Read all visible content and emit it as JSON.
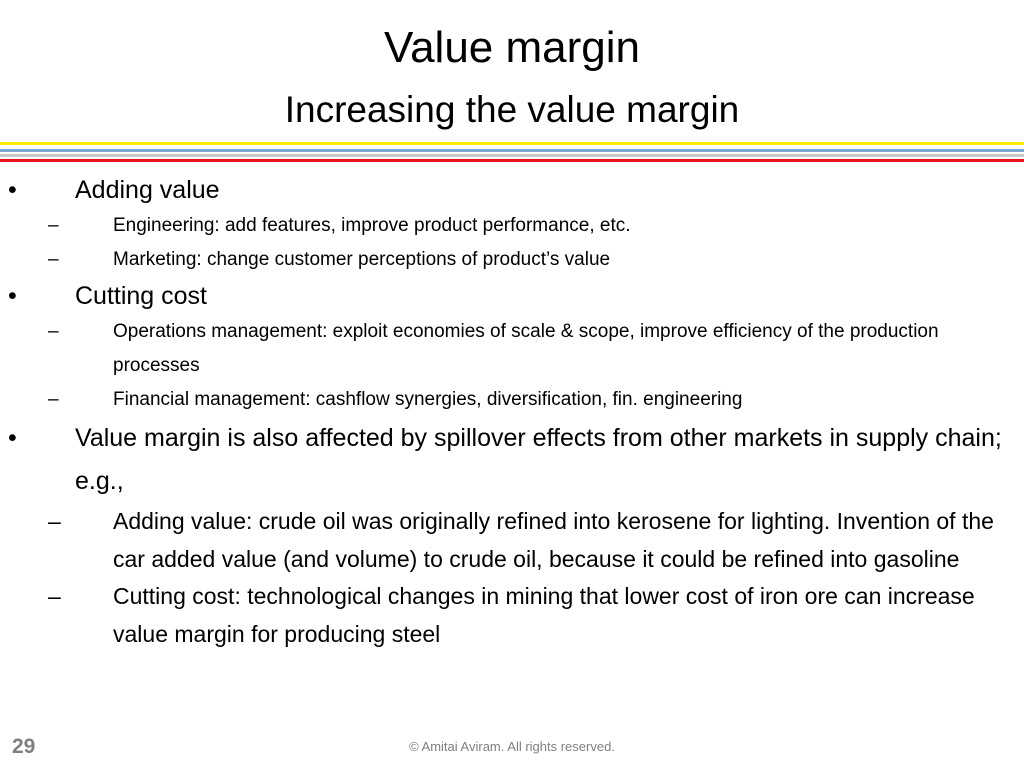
{
  "header": {
    "title": "Value margin",
    "subtitle": "Increasing the value margin"
  },
  "bullets": [
    {
      "text": "Adding value",
      "sub": [
        "Engineering: add features, improve product performance, etc.",
        "Marketing: change customer perceptions of product’s value"
      ]
    },
    {
      "text": "Cutting cost",
      "sub": [
        "Operations management: exploit economies of scale & scope, improve efficiency of the production processes",
        "Financial management: cashflow synergies, diversification, fin. engineering"
      ]
    },
    {
      "text": "Value margin is also affected by spillover effects from other markets in supply chain; e.g.,",
      "sub": [
        "Adding value: crude oil was originally refined into kerosene for lighting. Invention of the car added value (and volume) to crude oil, because it could be refined into gasoline",
        "Cutting cost: technological changes in mining that lower cost of iron ore can increase value margin for producing steel"
      ]
    }
  ],
  "footer": {
    "page_number": "29",
    "copyright": "© Amitai Aviram.  All rights reserved."
  }
}
